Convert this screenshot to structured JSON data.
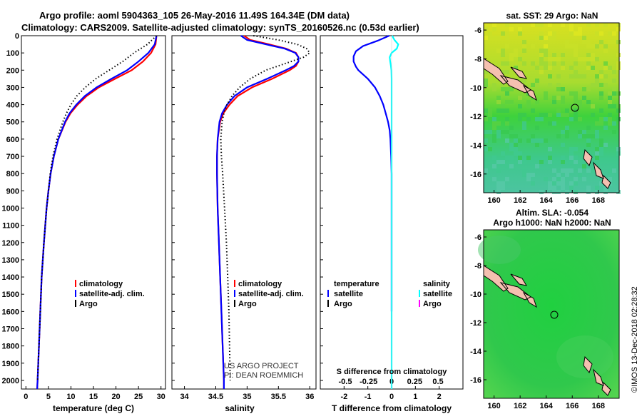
{
  "header": {
    "line1": "Argo profile: aoml 5904363_105 26-May-2016 11.49S 164.34E (DM data)",
    "line2": "Climatology: CARS2009. Satellite-adjusted climatology: synTS_20160526.nc (0.53d earlier)"
  },
  "chart_data": [
    {
      "type": "line",
      "name": "temperature-profile",
      "xlabel": "temperature (deg C)",
      "ylabel": "",
      "xlim": [
        -1,
        31
      ],
      "ylim": [
        2050,
        0
      ],
      "xticks": [
        0,
        5,
        10,
        15,
        20,
        25,
        30
      ],
      "yticks": [
        0,
        100,
        200,
        300,
        400,
        500,
        600,
        700,
        800,
        900,
        1000,
        1100,
        1200,
        1300,
        1400,
        1500,
        1600,
        1700,
        1800,
        1900,
        2000
      ],
      "legend": [
        "climatology",
        "satellite-adj. clim.",
        "Argo"
      ],
      "legend_colors": [
        "#ff0000",
        "#0000ff",
        "#000000"
      ],
      "series": [
        {
          "name": "climatology",
          "color": "#ff0000",
          "y": [
            0,
            50,
            100,
            150,
            200,
            250,
            300,
            350,
            400,
            450,
            500,
            600,
            700,
            800,
            900,
            1000,
            1200,
            1400,
            1600,
            1800,
            2000,
            2050
          ],
          "values": [
            29.0,
            28.8,
            27.8,
            26.0,
            23.5,
            19.8,
            16.2,
            13.5,
            11.5,
            9.9,
            8.8,
            7.2,
            6.2,
            5.5,
            5.0,
            4.6,
            4.0,
            3.5,
            3.2,
            2.9,
            2.6,
            2.5
          ]
        },
        {
          "name": "satellite-adj. clim.",
          "color": "#0000ff",
          "y": [
            0,
            50,
            100,
            150,
            200,
            250,
            300,
            350,
            400,
            450,
            500,
            600,
            700,
            800,
            900,
            1000,
            1200,
            1400,
            1600,
            1800,
            2000,
            2050
          ],
          "values": [
            29.0,
            28.6,
            27.2,
            25.0,
            22.5,
            19.0,
            15.7,
            13.1,
            11.2,
            9.7,
            8.7,
            7.2,
            6.2,
            5.5,
            5.0,
            4.6,
            4.0,
            3.5,
            3.2,
            2.9,
            2.6,
            2.5
          ]
        },
        {
          "name": "Argo",
          "color": "#000000",
          "dotted": true,
          "y": [
            0,
            50,
            100,
            150,
            200,
            250,
            300,
            350,
            400,
            450,
            500,
            600,
            700,
            800,
            900,
            1000,
            1200,
            1400,
            1600,
            1800,
            2000
          ],
          "values": [
            29.0,
            27.0,
            24.0,
            21.5,
            18.5,
            15.5,
            13.2,
            11.3,
            10.0,
            9.0,
            8.2,
            6.9,
            6.0,
            5.4,
            5.0,
            4.6,
            4.0,
            3.5,
            3.2,
            2.9,
            2.6
          ]
        }
      ]
    },
    {
      "type": "line",
      "name": "salinity-profile",
      "xlabel": "salinity",
      "ylabel": "",
      "xlim": [
        33.8,
        36.1
      ],
      "ylim": [
        2050,
        0
      ],
      "xticks": [
        34,
        34.5,
        35,
        35.5,
        36
      ],
      "legend": [
        "climatology",
        "satellite-adj. clim.",
        "Argo"
      ],
      "legend_colors": [
        "#ff0000",
        "#0000ff",
        "#000000"
      ],
      "annotations": [
        "US ARGO PROJECT",
        "PI: DEAN ROEMMICH"
      ],
      "series": [
        {
          "name": "climatology",
          "color": "#ff0000",
          "y": [
            0,
            25,
            50,
            75,
            100,
            125,
            150,
            175,
            200,
            250,
            300,
            350,
            400,
            450,
            500,
            600,
            700,
            800,
            1000,
            1200,
            1400,
            1600,
            1800,
            2000,
            2050
          ],
          "values": [
            34.95,
            35.05,
            35.35,
            35.62,
            35.78,
            35.82,
            35.82,
            35.78,
            35.68,
            35.4,
            35.08,
            34.85,
            34.72,
            34.62,
            34.57,
            34.53,
            34.52,
            34.52,
            34.53,
            34.55,
            34.57,
            34.59,
            34.61,
            34.63,
            34.63
          ]
        },
        {
          "name": "satellite-adj. clim.",
          "color": "#0000ff",
          "y": [
            0,
            25,
            50,
            75,
            100,
            125,
            150,
            175,
            200,
            250,
            300,
            350,
            400,
            450,
            500,
            600,
            700,
            800,
            1000,
            1200,
            1400,
            1600,
            1800,
            2000,
            2050
          ],
          "values": [
            34.9,
            35.0,
            35.3,
            35.6,
            35.77,
            35.82,
            35.82,
            35.75,
            35.62,
            35.32,
            35.0,
            34.8,
            34.68,
            34.6,
            34.56,
            34.53,
            34.52,
            34.52,
            34.53,
            34.55,
            34.57,
            34.59,
            34.61,
            34.63,
            34.63
          ]
        },
        {
          "name": "Argo",
          "color": "#000000",
          "dotted": true,
          "y": [
            0,
            25,
            50,
            75,
            100,
            125,
            150,
            175,
            200,
            250,
            300,
            350,
            400,
            450,
            500,
            600,
            700,
            800,
            1000,
            1200,
            1400,
            1600,
            1800,
            2000
          ],
          "values": [
            35.1,
            35.5,
            35.8,
            35.95,
            36.0,
            35.9,
            35.7,
            35.5,
            35.3,
            35.05,
            34.88,
            34.76,
            34.68,
            34.63,
            34.6,
            34.58,
            34.59,
            34.61,
            34.64,
            34.67,
            34.69,
            34.71,
            34.72,
            34.73
          ]
        }
      ]
    },
    {
      "type": "line",
      "name": "difference-profile",
      "xlabel": "T difference from climatology",
      "ylabel": "",
      "xlim": [
        -3,
        3
      ],
      "ylim": [
        2050,
        0
      ],
      "xticks": [
        -2,
        -1,
        0,
        1,
        2
      ],
      "xticks_top_label": "S difference from climatology",
      "xticks_top": [
        "-0.5",
        "-0.25",
        "0",
        "0.25",
        "0.5"
      ],
      "legend_left_title": "temperature",
      "legend_left": [
        "satellite",
        "Argo"
      ],
      "legend_left_colors": [
        "#0000ff",
        "#000000"
      ],
      "legend_right_title": "salinity",
      "legend_right": [
        "satellite",
        "Argo"
      ],
      "legend_right_colors": [
        "#00ffff",
        "#ff00ff"
      ],
      "series": [
        {
          "name": "temperature satellite",
          "color": "#0000ff",
          "y": [
            0,
            30,
            60,
            90,
            120,
            150,
            180,
            200,
            250,
            300,
            350,
            400,
            450,
            500,
            550,
            600,
            700,
            800,
            1000,
            1200,
            1500,
            1600
          ],
          "values": [
            -0.1,
            -0.6,
            -1.2,
            -1.5,
            -1.6,
            -1.6,
            -1.5,
            -1.4,
            -1.0,
            -0.7,
            -0.5,
            -0.35,
            -0.25,
            -0.15,
            -0.08,
            -0.05,
            -0.02,
            0,
            0,
            0,
            0,
            0
          ]
        },
        {
          "name": "salinity satellite",
          "color": "#00ffff",
          "y": [
            0,
            25,
            50,
            75,
            100,
            125,
            150,
            175,
            200,
            250,
            300,
            350,
            400,
            500,
            600,
            700,
            800,
            1000,
            1200,
            1500,
            1800,
            2000,
            2050
          ],
          "values": [
            0.02,
            0.12,
            0.28,
            0.22,
            0.0,
            -0.08,
            -0.06,
            -0.03,
            -0.01,
            0,
            0,
            0,
            0,
            0,
            0,
            0,
            0,
            0,
            0,
            0,
            0,
            0,
            0
          ]
        }
      ]
    }
  ],
  "maps": {
    "sst": {
      "title": "sat. SST: 29 Argo: NaN",
      "xticks": [
        "160",
        "162",
        "164",
        "166",
        "168"
      ],
      "yticks": [
        "-6",
        "-8",
        "-10",
        "-12",
        "-14",
        "-16"
      ]
    },
    "sla": {
      "title1": "Altim. SLA: -0.054",
      "title2": "Argo h1000: NaN h2000: NaN",
      "xticks": [
        "160",
        "162",
        "164",
        "166",
        "168"
      ],
      "yticks": [
        "-6",
        "-8",
        "-10",
        "-12",
        "-14",
        "-16"
      ]
    }
  },
  "footer": {
    "credit": "©IMOS 13-Dec-2018 02:28:32"
  }
}
